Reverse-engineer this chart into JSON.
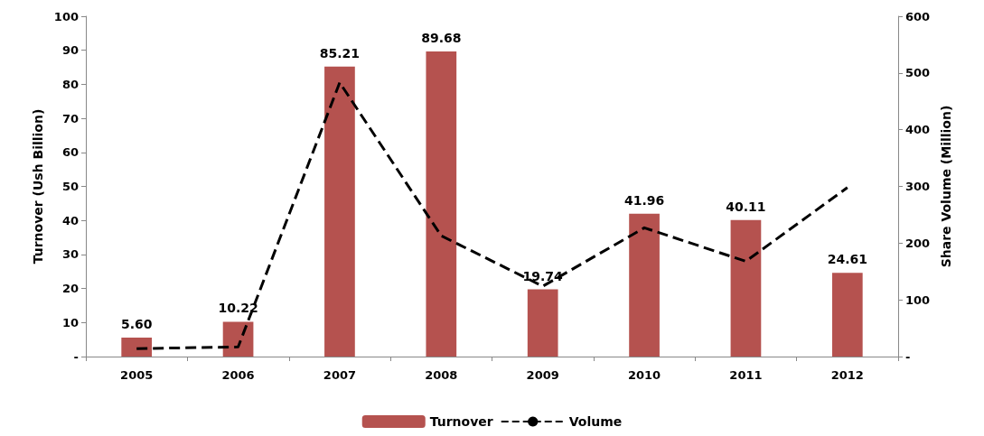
{
  "chart_data": {
    "type": "bar",
    "categories": [
      "2005",
      "2006",
      "2007",
      "2008",
      "2009",
      "2010",
      "2011",
      "2012"
    ],
    "series": [
      {
        "name": "Turnover",
        "color": "#b5524f",
        "values": [
          5.6,
          10.22,
          85.21,
          89.68,
          19.74,
          41.96,
          40.11,
          24.61
        ],
        "value_labels": [
          "5.60",
          "10.22",
          "85.21",
          "89.68",
          "19.74",
          "41.96",
          "40.11",
          "24.61"
        ]
      },
      {
        "name": "Volume",
        "type": "line",
        "axis": "y2",
        "color": "#000000",
        "line_style": "dashed",
        "marker": "none",
        "values": [
          14,
          17,
          483,
          213,
          124,
          227,
          168,
          298
        ]
      }
    ],
    "ylabel": "Turnover (Ush Billion)",
    "y2label": "Share Volume (Million)",
    "ylim": [
      0,
      100
    ],
    "yticks": [
      {
        "value": 0,
        "label": "-"
      },
      10,
      20,
      30,
      40,
      50,
      60,
      70,
      80,
      90,
      100
    ],
    "y2lim": [
      0,
      600
    ],
    "y2ticks": [
      {
        "value": 0,
        "label": "-"
      },
      100,
      200,
      300,
      400,
      500,
      600
    ],
    "legend": "bottom",
    "grid": false
  }
}
